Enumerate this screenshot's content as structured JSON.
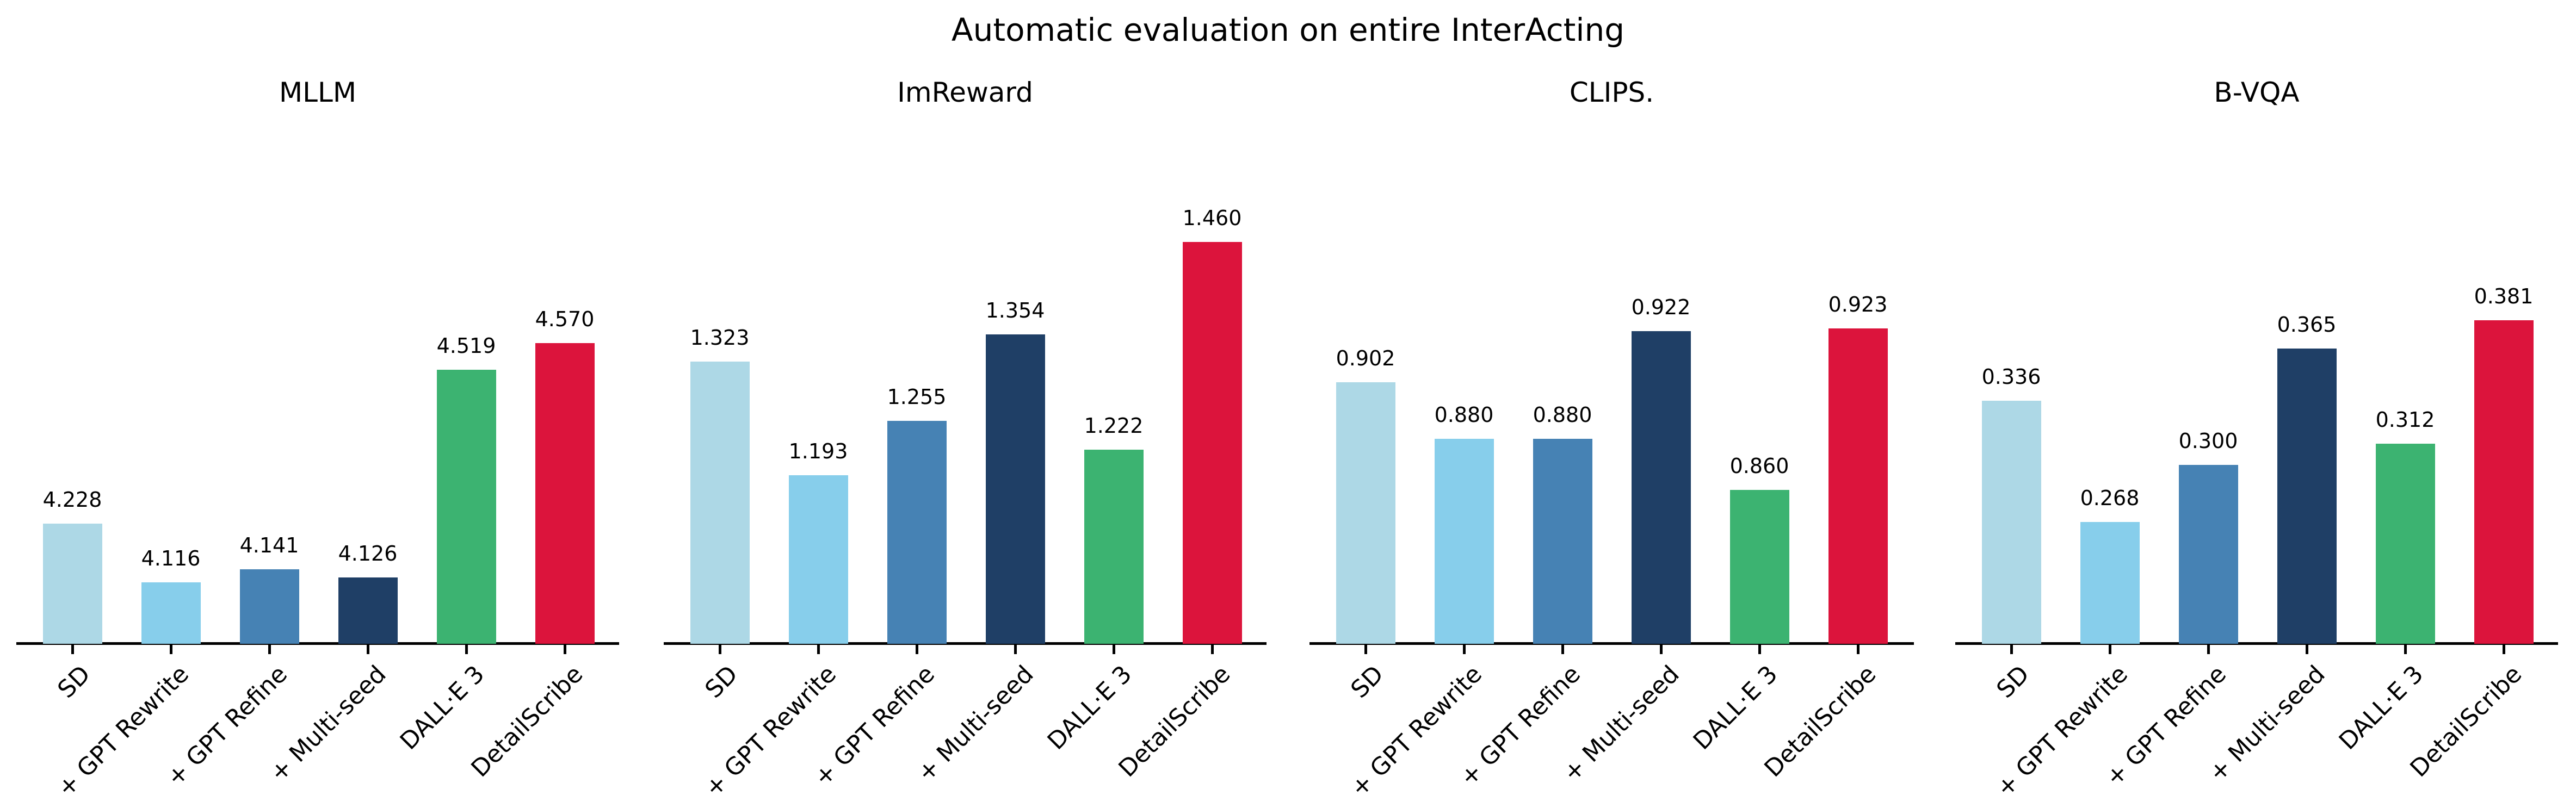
{
  "title": "Automatic evaluation on entire InterActing",
  "categories": [
    "SD",
    "+ GPT Rewrite",
    "+ GPT Refine",
    "+ Multi-seed",
    "DALL·E 3",
    "DetailScribe"
  ],
  "colors": [
    "#add8e6",
    "#87ceeb",
    "#4682b4",
    "#1f3f66",
    "#3cb371",
    "#dc143c"
  ],
  "chart_data": [
    {
      "type": "bar",
      "title": "MLLM",
      "categories": [
        "SD",
        "+ GPT Rewrite",
        "+ GPT Refine",
        "+ Multi-seed",
        "DALL·E 3",
        "DetailScribe"
      ],
      "values": [
        4.228,
        4.116,
        4.141,
        4.126,
        4.519,
        4.57
      ],
      "value_labels": [
        "4.228",
        "4.116",
        "4.141",
        "4.126",
        "4.519",
        "4.570"
      ],
      "xlabel": "",
      "ylabel": "",
      "ylim": [
        4.0,
        4.8
      ],
      "grid": false,
      "yaxis_visible": false
    },
    {
      "type": "bar",
      "title": "ImReward",
      "categories": [
        "SD",
        "+ GPT Rewrite",
        "+ GPT Refine",
        "+ Multi-seed",
        "DALL·E 3",
        "DetailScribe"
      ],
      "values": [
        1.323,
        1.193,
        1.255,
        1.354,
        1.222,
        1.46
      ],
      "value_labels": [
        "1.323",
        "1.193",
        "1.255",
        "1.354",
        "1.222",
        "1.460"
      ],
      "xlabel": "",
      "ylabel": "",
      "ylim": [
        1.0,
        1.48
      ],
      "grid": false,
      "yaxis_visible": false
    },
    {
      "type": "bar",
      "title": "CLIPS.",
      "categories": [
        "SD",
        "+ GPT Rewrite",
        "+ GPT Refine",
        "+ Multi-seed",
        "DALL·E 3",
        "DetailScribe"
      ],
      "values": [
        0.902,
        0.88,
        0.88,
        0.922,
        0.86,
        0.923
      ],
      "value_labels": [
        "0.902",
        "0.880",
        "0.880",
        "0.922",
        "0.860",
        "0.923"
      ],
      "xlabel": "",
      "ylabel": "",
      "ylim": [
        0.8,
        0.96
      ],
      "grid": false,
      "yaxis_visible": false
    },
    {
      "type": "bar",
      "title": "B-VQA",
      "categories": [
        "SD",
        "+ GPT Rewrite",
        "+ GPT Refine",
        "+ Multi-seed",
        "DALL·E 3",
        "DetailScribe"
      ],
      "values": [
        0.336,
        0.268,
        0.3,
        0.365,
        0.312,
        0.381
      ],
      "value_labels": [
        "0.336",
        "0.268",
        "0.300",
        "0.365",
        "0.312",
        "0.381"
      ],
      "xlabel": "",
      "ylabel": "",
      "ylim": [
        0.2,
        0.4
      ],
      "grid": false,
      "yaxis_visible": false
    }
  ]
}
